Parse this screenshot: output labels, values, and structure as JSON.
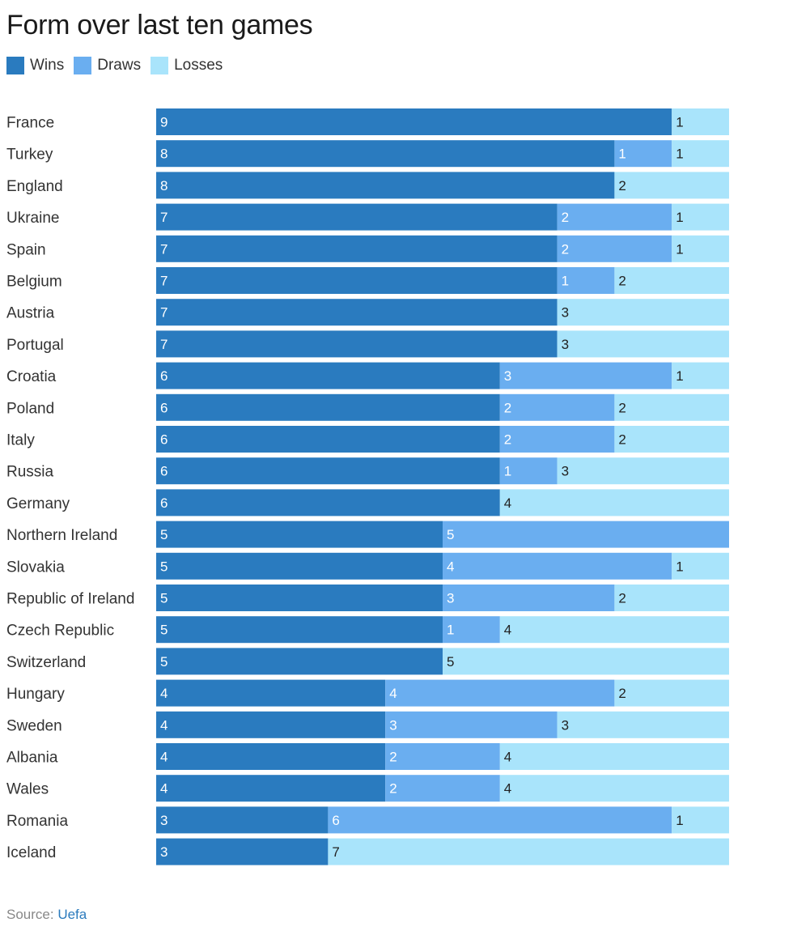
{
  "title": "Form over last ten games",
  "legend": [
    {
      "label": "Wins",
      "color": "#2a7bbf"
    },
    {
      "label": "Draws",
      "color": "#6aaef0"
    },
    {
      "label": "Losses",
      "color": "#a9e4fb"
    }
  ],
  "source": {
    "prefix": "Source:",
    "link": "Uefa"
  },
  "chart_data": {
    "type": "bar",
    "orientation": "horizontal",
    "stacked": true,
    "title": "Form over last ten games",
    "xlim": [
      0,
      10
    ],
    "legend_position": "top-left",
    "categories": [
      "France",
      "Turkey",
      "England",
      "Ukraine",
      "Spain",
      "Belgium",
      "Austria",
      "Portugal",
      "Croatia",
      "Poland",
      "Italy",
      "Russia",
      "Germany",
      "Northern Ireland",
      "Slovakia",
      "Republic of Ireland",
      "Czech Republic",
      "Switzerland",
      "Hungary",
      "Sweden",
      "Albania",
      "Wales",
      "Romania",
      "Iceland"
    ],
    "series": [
      {
        "name": "Wins",
        "color": "#2a7bbf",
        "values": [
          9,
          8,
          8,
          7,
          7,
          7,
          7,
          7,
          6,
          6,
          6,
          6,
          6,
          5,
          5,
          5,
          5,
          5,
          4,
          4,
          4,
          4,
          3,
          3
        ]
      },
      {
        "name": "Draws",
        "color": "#6aaef0",
        "values": [
          0,
          1,
          0,
          2,
          2,
          1,
          0,
          0,
          3,
          2,
          2,
          1,
          0,
          5,
          4,
          3,
          1,
          0,
          4,
          3,
          2,
          2,
          6,
          0
        ]
      },
      {
        "name": "Losses",
        "color": "#a9e4fb",
        "values": [
          1,
          1,
          2,
          1,
          1,
          2,
          3,
          3,
          1,
          2,
          2,
          3,
          4,
          0,
          1,
          2,
          4,
          5,
          2,
          3,
          4,
          4,
          1,
          7
        ]
      }
    ]
  }
}
